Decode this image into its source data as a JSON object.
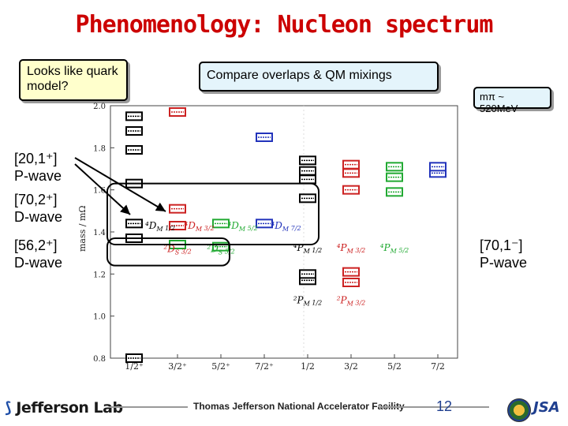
{
  "slide": {
    "title": "Phenomenology: Nucleon spectrum",
    "callout_left": "Looks like quark model?",
    "callout_center": "Compare overlaps & QM mixings",
    "callout_right": "mπ ~ 520MeV",
    "side_labels": {
      "p_wave_20_top": "[20,1⁺]",
      "p_wave_20_bottom": "P-wave",
      "d_wave_70_top": "[70,2⁺]",
      "d_wave_70_bottom": "D-wave",
      "d_wave_56_top": "[56,2⁺]",
      "d_wave_56_bottom": "D-wave",
      "p_wave_70_top": "[70,1⁻]",
      "p_wave_70_bottom": "P-wave"
    },
    "footer": {
      "lab": "Jefferson Lab",
      "facility": "Thomas Jefferson National Accelerator Facility",
      "page": "12",
      "logo_right": "JSA"
    }
  },
  "chart_data": {
    "type": "scatter",
    "ylabel": "mass / mΩ",
    "ylim": [
      0.8,
      2.0
    ],
    "yticks": [
      "0.8",
      "1.0",
      "1.2",
      "1.4",
      "1.6",
      "1.8",
      "2.0"
    ],
    "xticks": [
      "1/2⁺",
      "3/2⁺",
      "5/2⁺",
      "7/2⁺",
      "1/2",
      "3/2",
      "5/2",
      "7/2"
    ],
    "colors": {
      "black": "#000000",
      "red": "#cc2222",
      "green": "#22aa33",
      "blue": "#2233bb"
    },
    "levels": [
      {
        "x": 0,
        "y": 0.8,
        "color": "black"
      },
      {
        "x": 0,
        "y": 1.37,
        "color": "black"
      },
      {
        "x": 0,
        "y": 1.44,
        "color": "black"
      },
      {
        "x": 0,
        "y": 1.63,
        "color": "black"
      },
      {
        "x": 0,
        "y": 1.79,
        "color": "black"
      },
      {
        "x": 0,
        "y": 1.88,
        "color": "black"
      },
      {
        "x": 0,
        "y": 1.95,
        "color": "black"
      },
      {
        "x": 1,
        "y": 1.34,
        "color": "green"
      },
      {
        "x": 1,
        "y": 1.43,
        "color": "red"
      },
      {
        "x": 1,
        "y": 1.51,
        "color": "red"
      },
      {
        "x": 1,
        "y": 1.97,
        "color": "red"
      },
      {
        "x": 2,
        "y": 1.33,
        "color": "green"
      },
      {
        "x": 2,
        "y": 1.44,
        "color": "green"
      },
      {
        "x": 3,
        "y": 1.44,
        "color": "blue"
      },
      {
        "x": 3,
        "y": 1.85,
        "color": "blue"
      },
      {
        "x": 4,
        "y": 1.17,
        "color": "black"
      },
      {
        "x": 4,
        "y": 1.2,
        "color": "black"
      },
      {
        "x": 4,
        "y": 1.56,
        "color": "black"
      },
      {
        "x": 4,
        "y": 1.65,
        "color": "black"
      },
      {
        "x": 4,
        "y": 1.69,
        "color": "black"
      },
      {
        "x": 4,
        "y": 1.74,
        "color": "black"
      },
      {
        "x": 5,
        "y": 1.16,
        "color": "red"
      },
      {
        "x": 5,
        "y": 1.21,
        "color": "red"
      },
      {
        "x": 5,
        "y": 1.6,
        "color": "red"
      },
      {
        "x": 5,
        "y": 1.68,
        "color": "red"
      },
      {
        "x": 5,
        "y": 1.72,
        "color": "red"
      },
      {
        "x": 6,
        "y": 1.59,
        "color": "green"
      },
      {
        "x": 6,
        "y": 1.66,
        "color": "green"
      },
      {
        "x": 6,
        "y": 1.71,
        "color": "green"
      },
      {
        "x": 7,
        "y": 1.68,
        "color": "blue"
      },
      {
        "x": 7,
        "y": 1.71,
        "color": "blue"
      }
    ],
    "annotations": [
      {
        "text": "⁴D",
        "sub": "M",
        "frac": "1/2",
        "x": 0.6,
        "y": 1.415,
        "color": "black"
      },
      {
        "text": "⁴D",
        "sub": "M",
        "frac": "3/2",
        "x": 1.5,
        "y": 1.415,
        "color": "red"
      },
      {
        "text": "⁴D",
        "sub": "M",
        "frac": "5/2",
        "x": 2.5,
        "y": 1.415,
        "color": "green"
      },
      {
        "text": "⁴D",
        "sub": "M",
        "frac": "7/2",
        "x": 3.5,
        "y": 1.415,
        "color": "blue"
      },
      {
        "text": "²D",
        "sub": "S",
        "frac": "3/2",
        "x": 1.0,
        "y": 1.305,
        "color": "red"
      },
      {
        "text": "²D",
        "sub": "S",
        "frac": "5/2",
        "x": 2.0,
        "y": 1.305,
        "color": "green"
      },
      {
        "text": "⁴P",
        "sub": "M",
        "frac": "1/2",
        "x": 4.0,
        "y": 1.31,
        "color": "black"
      },
      {
        "text": "⁴P",
        "sub": "M",
        "frac": "3/2",
        "x": 5.0,
        "y": 1.31,
        "color": "red"
      },
      {
        "text": "⁴P",
        "sub": "M",
        "frac": "5/2",
        "x": 6.0,
        "y": 1.31,
        "color": "green"
      },
      {
        "text": "²P",
        "sub": "M",
        "frac": "1/2",
        "x": 4.0,
        "y": 1.06,
        "color": "black"
      },
      {
        "text": "²P",
        "sub": "M",
        "frac": "3/2",
        "x": 5.0,
        "y": 1.06,
        "color": "red"
      }
    ]
  }
}
